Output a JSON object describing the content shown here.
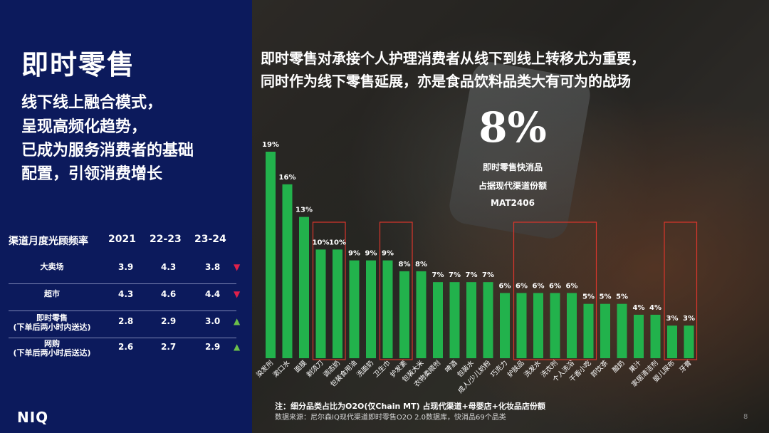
{
  "left": {
    "title": "即时零售",
    "subtitle_lines": [
      "线下线上融合模式，",
      "呈现高频化趋势，",
      "已成为服务消费者的基础",
      "配置，引领消费增长"
    ],
    "table": {
      "header": [
        "渠道月度光顾频率",
        "2021",
        "22-23",
        "23-24"
      ],
      "rows": [
        {
          "label": "大卖场",
          "label2": "",
          "values": [
            "3.9",
            "4.3",
            "3.8"
          ],
          "trend": "down"
        },
        {
          "label": "超市",
          "label2": "",
          "values": [
            "4.3",
            "4.6",
            "4.4"
          ],
          "trend": "down"
        },
        {
          "label": "即时零售",
          "label2": "(下单后两小时内送达)",
          "values": [
            "2.8",
            "2.9",
            "3.0"
          ],
          "trend": "up"
        },
        {
          "label": "网购",
          "label2": "(下单后两小时后送达)",
          "values": [
            "2.6",
            "2.7",
            "2.9"
          ],
          "trend": "up"
        }
      ],
      "trend_colors": {
        "down": "#e0204a",
        "up": "#6cc04a"
      }
    },
    "logo": "NIQ"
  },
  "headline_lines": [
    "即时零售对承接个人护理消费者从线下到线上转移尤为重要，",
    "同时作为线下零售延展，亦是食品饮料品类大有可为的战场"
  ],
  "kpi": {
    "value": "8%",
    "note_lines": [
      "即时零售快消品",
      "占据现代渠道份额",
      "MAT2406"
    ]
  },
  "chart_data": {
    "type": "bar",
    "categories": [
      "染发剂",
      "漱口水",
      "面膜",
      "剃须刀",
      "调态奶",
      "包装食用油",
      "洗面奶",
      "卫生巾",
      "护发素",
      "包装大米",
      "衣物柔顺剂",
      "啤酒",
      "包装水",
      "成人/少儿奶粉",
      "巧克力",
      "护肤品",
      "洗发水",
      "洗衣剂",
      "个人洗浴",
      "干香小吃",
      "即饮茶",
      "酸奶",
      "果汁",
      "家居清洁剂",
      "婴儿尿布",
      "牙膏"
    ],
    "values": [
      19,
      16,
      13,
      10,
      10,
      9,
      9,
      9,
      8,
      8,
      7,
      7,
      7,
      7,
      6,
      6,
      6,
      6,
      6,
      5,
      5,
      5,
      4,
      4,
      3,
      3
    ],
    "labels": [
      "19%",
      "16%",
      "13%",
      "10%",
      "10%",
      "9%",
      "9%",
      "9%",
      "8%",
      "8%",
      "7%",
      "7%",
      "7%",
      "7%",
      "6%",
      "6%",
      "6%",
      "6%",
      "6%",
      "5%",
      "5%",
      "5%",
      "4%",
      "4%",
      "3%",
      "3%"
    ],
    "ylim": [
      0,
      19
    ],
    "bar_color": "#22b24c",
    "highlight_box_color": "#d9362c",
    "highlight_groups": [
      [
        3,
        4
      ],
      [
        7,
        8
      ],
      [
        15,
        19
      ],
      [
        24,
        25
      ]
    ]
  },
  "footnote": "注：细分品类占比为O2O(仅Chain MT) 占现代渠道+母婴店+化妆品店份额",
  "source": "数据来源：尼尔森IQ现代渠道即时零售O2O 2.0数据库，快消品69个品类",
  "page_number": "8"
}
